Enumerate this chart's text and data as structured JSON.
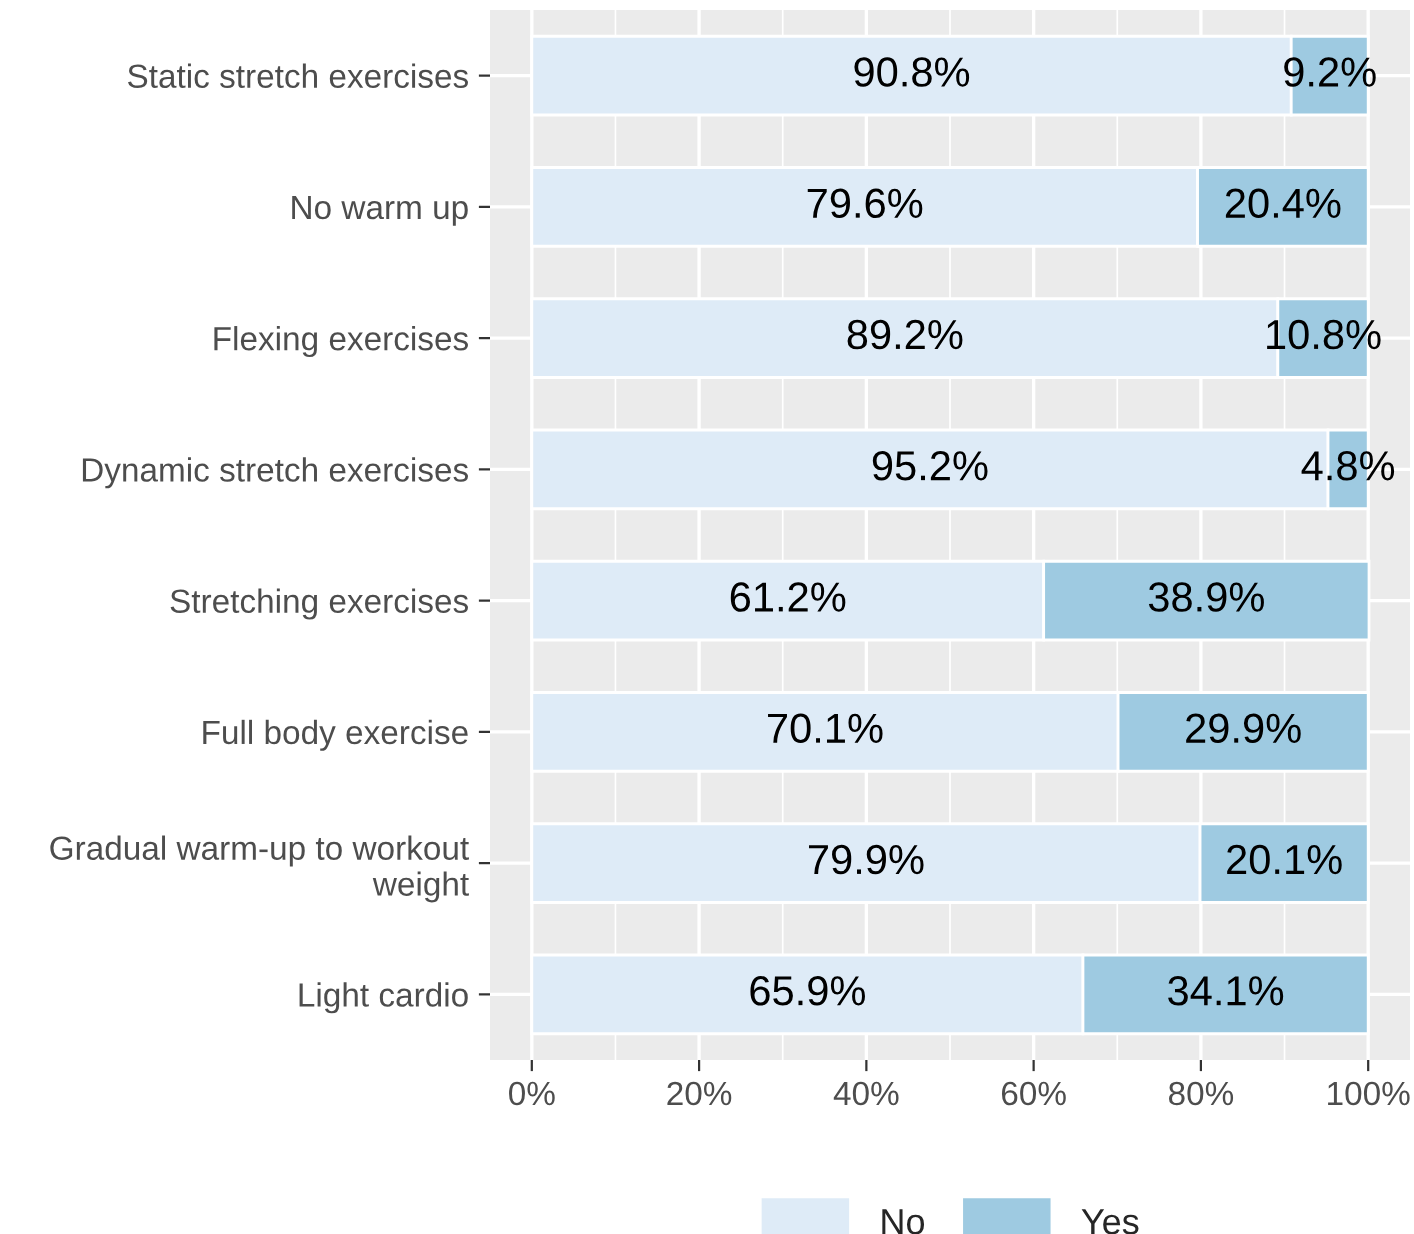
{
  "chart_data": {
    "type": "bar",
    "orientation": "horizontal",
    "stacked": true,
    "categories": [
      "Static stretch exercises",
      "No warm up",
      "Flexing exercises",
      "Dynamic stretch exercises",
      "Stretching exercises",
      "Full body exercise",
      "Gradual warm-up to workout\nweight",
      "Light cardio"
    ],
    "series": [
      {
        "name": "No",
        "color": "#deebf7",
        "values": [
          90.8,
          79.6,
          89.2,
          95.2,
          61.2,
          70.1,
          79.9,
          65.9
        ],
        "value_labels": [
          "90.8%",
          "79.6%",
          "89.2%",
          "95.2%",
          "61.2%",
          "70.1%",
          "79.9%",
          "65.9%"
        ]
      },
      {
        "name": "Yes",
        "color": "#9ecae1",
        "values": [
          9.2,
          20.4,
          10.8,
          4.8,
          38.9,
          29.9,
          20.1,
          34.1
        ],
        "value_labels": [
          "9.2%",
          "20.4%",
          "10.8%",
          "4.8%",
          "38.9%",
          "29.9%",
          "20.1%",
          "34.1%"
        ]
      }
    ],
    "xlim": [
      -5,
      105
    ],
    "xticks": [
      {
        "value": 0,
        "label": "0%"
      },
      {
        "value": 20,
        "label": "20%"
      },
      {
        "value": 40,
        "label": "40%"
      },
      {
        "value": 60,
        "label": "60%"
      },
      {
        "value": 80,
        "label": "80%"
      },
      {
        "value": 100,
        "label": "100%"
      }
    ],
    "grid": true,
    "legend": "bottom"
  }
}
